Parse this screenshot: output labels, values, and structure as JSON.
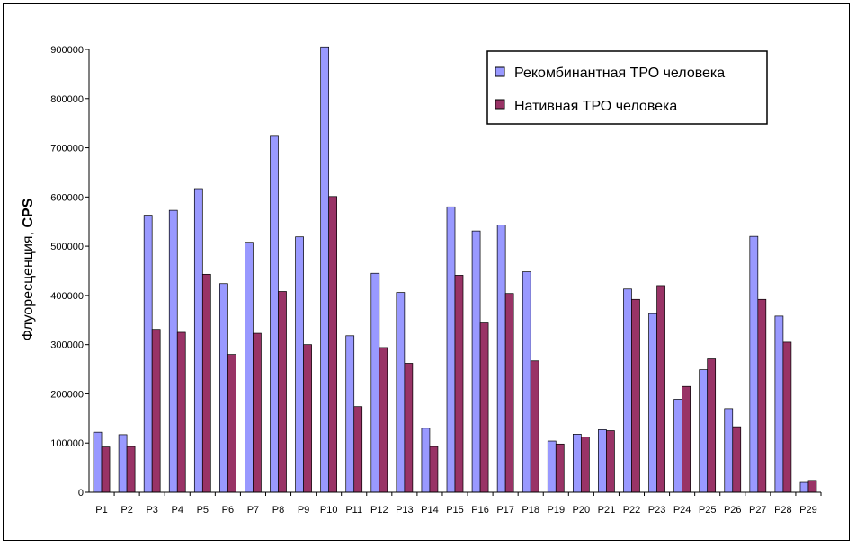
{
  "chart_data": {
    "type": "bar",
    "title": "",
    "xlabel": "",
    "ylabel_main": "Флуоресценция, ",
    "ylabel_unit": "CPS",
    "ylim": [
      0,
      900000
    ],
    "yticks": [
      "0",
      "100000",
      "200000",
      "300000",
      "400000",
      "500000",
      "600000",
      "700000",
      "800000",
      "900000"
    ],
    "grid": false,
    "legend_position": "top-right",
    "categories": [
      "P1",
      "P2",
      "P3",
      "P4",
      "P5",
      "P6",
      "P7",
      "P8",
      "P9",
      "P10",
      "P11",
      "P12",
      "P13",
      "P14",
      "P15",
      "P16",
      "P17",
      "P18",
      "P19",
      "P20",
      "P21",
      "P22",
      "P23",
      "P24",
      "P25",
      "P26",
      "P27",
      "P28",
      "P29"
    ],
    "series": [
      {
        "name": "Рекомбинантная ТРО человека",
        "color": "#9999ff",
        "values": [
          122000,
          117000,
          563000,
          573000,
          617000,
          424000,
          508000,
          725000,
          519000,
          905000,
          318000,
          445000,
          406000,
          130000,
          580000,
          531000,
          543000,
          448000,
          104000,
          118000,
          127000,
          413000,
          363000,
          189000,
          249000,
          170000,
          520000,
          358000,
          20000
        ]
      },
      {
        "name": "Нативная ТРО человека",
        "color": "#993366",
        "values": [
          92000,
          93000,
          331000,
          325000,
          443000,
          280000,
          323000,
          408000,
          300000,
          601000,
          174000,
          294000,
          262000,
          93000,
          441000,
          344000,
          404000,
          267000,
          98000,
          112000,
          125000,
          392000,
          420000,
          215000,
          271000,
          133000,
          392000,
          305000,
          24000
        ]
      }
    ]
  }
}
